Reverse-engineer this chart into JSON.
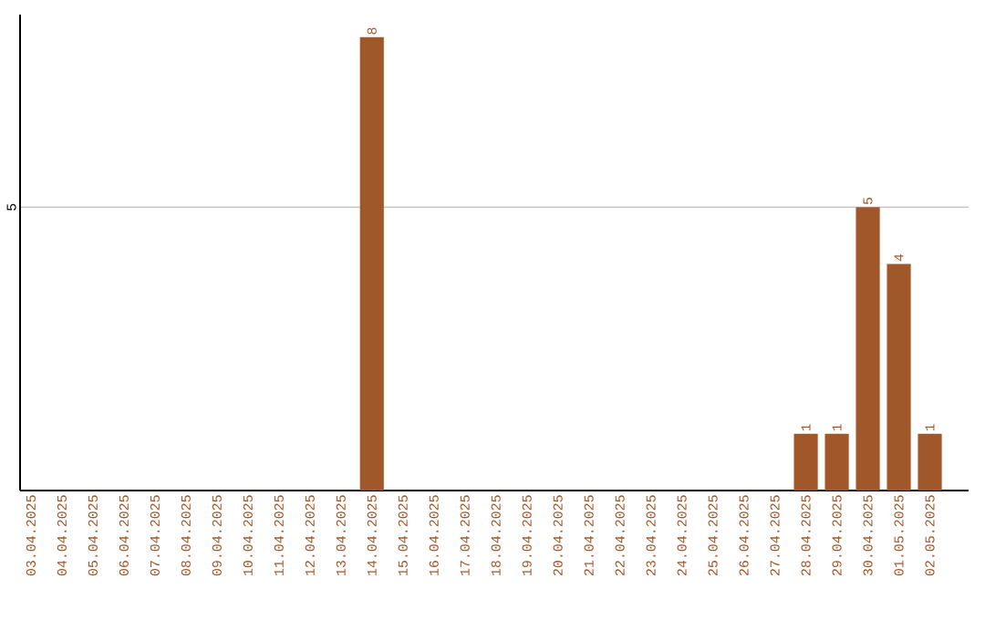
{
  "chart_data": {
    "type": "bar",
    "categories": [
      "03.04.2025",
      "04.04.2025",
      "05.04.2025",
      "06.04.2025",
      "07.04.2025",
      "08.04.2025",
      "09.04.2025",
      "10.04.2025",
      "11.04.2025",
      "12.04.2025",
      "13.04.2025",
      "14.04.2025",
      "15.04.2025",
      "16.04.2025",
      "17.04.2025",
      "18.04.2025",
      "19.04.2025",
      "20.04.2025",
      "21.04.2025",
      "22.04.2025",
      "23.04.2025",
      "24.04.2025",
      "25.04.2025",
      "26.04.2025",
      "27.04.2025",
      "28.04.2025",
      "29.04.2025",
      "30.04.2025",
      "01.05.2025",
      "02.05.2025"
    ],
    "values": [
      0,
      0,
      0,
      0,
      0,
      0,
      0,
      0,
      0,
      0,
      0,
      8,
      0,
      0,
      0,
      0,
      0,
      0,
      0,
      0,
      0,
      0,
      0,
      0,
      0,
      1,
      1,
      5,
      4,
      1
    ],
    "value_labels": [
      null,
      null,
      null,
      null,
      null,
      null,
      null,
      null,
      null,
      null,
      null,
      "8",
      null,
      null,
      null,
      null,
      null,
      null,
      null,
      null,
      null,
      null,
      null,
      null,
      null,
      "1",
      "1",
      "5",
      "4",
      "1"
    ],
    "color": "#a0572a",
    "ylim": [
      0,
      8.4
    ],
    "yticks": [
      5
    ],
    "grid": "y",
    "legend": false
  }
}
